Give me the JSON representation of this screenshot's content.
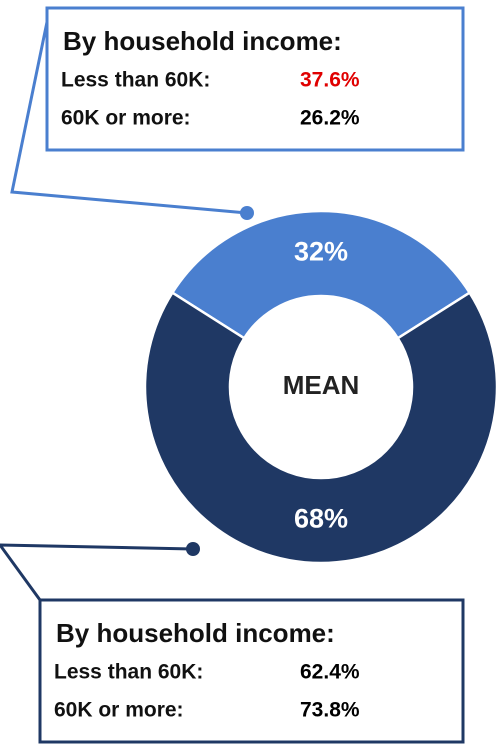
{
  "chart_data": {
    "type": "donut",
    "values": [
      32,
      68
    ],
    "value_labels": [
      "32%",
      "68%"
    ],
    "colors": [
      "#4a7fcf",
      "#1f3864"
    ],
    "center_label": "MEAN",
    "annotations": [
      {
        "title": "By household income:",
        "border_color": "#4a7fcf",
        "rows": [
          {
            "label": "Less than 60K:",
            "value": "37.6%",
            "color": "#e00000"
          },
          {
            "label": "60K or more:",
            "value": "26.2%",
            "color": "#000000"
          }
        ]
      },
      {
        "title": "By household income:",
        "border_color": "#1f3864",
        "rows": [
          {
            "label": "Less than 60K:",
            "value": "62.4%",
            "color": "#000000"
          },
          {
            "label": "60K or more:",
            "value": "73.8%",
            "color": "#000000"
          }
        ]
      }
    ]
  }
}
